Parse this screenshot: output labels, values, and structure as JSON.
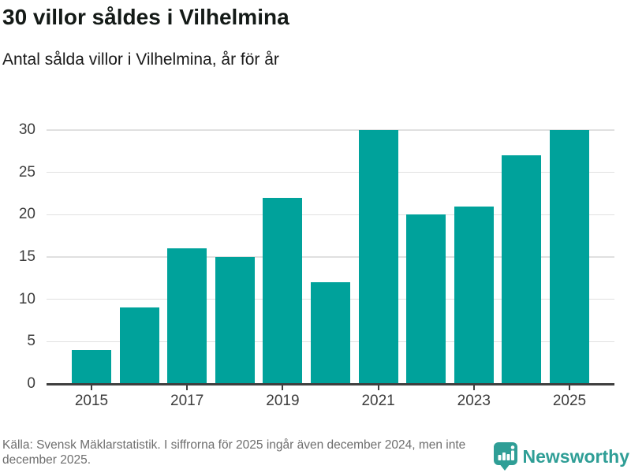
{
  "header": {
    "title": "30 villor såldes i Vilhelmina",
    "subtitle": "Antal sålda villor i Vilhelmina, år för år"
  },
  "chart_data": {
    "type": "bar",
    "categories": [
      "2015",
      "2016",
      "2017",
      "2018",
      "2019",
      "2020",
      "2021",
      "2022",
      "2023",
      "2024",
      "2025"
    ],
    "values": [
      4,
      9,
      16,
      15,
      22,
      12,
      30,
      20,
      21,
      27,
      30
    ],
    "title": "30 villor såldes i Vilhelmina",
    "subtitle": "Antal sålda villor i Vilhelmina, år för år",
    "xlabel": "",
    "ylabel": "",
    "ylim": [
      0,
      30
    ],
    "yticks": [
      0,
      5,
      10,
      15,
      20,
      25,
      30
    ],
    "xtick_labels": [
      "2015",
      "2017",
      "2019",
      "2021",
      "2023",
      "2025"
    ],
    "grid": true,
    "legend": false,
    "bar_color": "#00a29b"
  },
  "footer": {
    "source_text": "Källa: Svensk Mäklarstatistik. I siffrorna för 2025 ingår även december 2024, men inte december 2025.",
    "brand": "Newsworthy"
  },
  "colors": {
    "accent": "#00a29b",
    "axis": "#3f3f3f",
    "grid": "#e0e0e0",
    "title_text": "#141a17",
    "muted_text": "#6e6e6e",
    "brand_teal": "#2f9e96"
  }
}
